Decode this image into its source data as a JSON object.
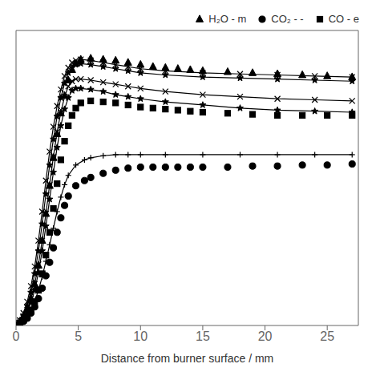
{
  "chart_data": {
    "type": "line",
    "xlabel": "Distance from burner surface / mm",
    "xlim": [
      0,
      27.5
    ],
    "xticks": [
      0,
      5,
      10,
      15,
      20,
      25
    ],
    "ylim": [
      0,
      0.285
    ],
    "yticks": [],
    "tick_labels": "x",
    "legend": "upper right",
    "grid": false,
    "series": [
      {
        "x": [
          0.0,
          0.3,
          0.6,
          0.9,
          1.2,
          1.5,
          1.8,
          2.1,
          2.4,
          2.7,
          3.0,
          3.3,
          3.6,
          3.9,
          4.2,
          4.5,
          4.8,
          5.2,
          6.0,
          7.0,
          8.0,
          9.0,
          10.0,
          12.0,
          15.0,
          18.0,
          21.0,
          24.0,
          27.0
        ],
        "values": [
          0.0,
          0.005,
          0.012,
          0.023,
          0.038,
          0.057,
          0.082,
          0.11,
          0.14,
          0.168,
          0.192,
          0.212,
          0.228,
          0.241,
          0.249,
          0.254,
          0.256,
          0.257,
          0.256,
          0.254,
          0.252,
          0.25,
          0.248,
          0.246,
          0.244,
          0.243,
          0.242,
          0.241,
          0.24
        ],
        "color": "#000000",
        "marker": "x",
        "line_style": "solid"
      },
      {
        "x": [
          0.0,
          0.3,
          0.6,
          0.9,
          1.2,
          1.5,
          1.8,
          2.1,
          2.4,
          2.7,
          3.0,
          3.3,
          3.6,
          3.9,
          4.2,
          4.5,
          4.8,
          5.2,
          6.0,
          7.0,
          8.0,
          9.0,
          10.0,
          12.0,
          15.0,
          18.0,
          21.0,
          24.0,
          27.0
        ],
        "values": [
          0.0,
          0.004,
          0.01,
          0.019,
          0.032,
          0.05,
          0.072,
          0.098,
          0.127,
          0.155,
          0.18,
          0.202,
          0.22,
          0.234,
          0.244,
          0.249,
          0.252,
          0.253,
          0.252,
          0.25,
          0.248,
          0.246,
          0.244,
          0.242,
          0.24,
          0.239,
          0.238,
          0.237,
          0.236
        ],
        "color": "#000000",
        "marker": "star",
        "line_style": "solid"
      },
      {
        "x": [
          0.0,
          0.3,
          0.6,
          0.9,
          1.2,
          1.5,
          1.8,
          2.1,
          2.4,
          2.7,
          3.0,
          3.3,
          3.6,
          3.9,
          4.2,
          4.5,
          4.8,
          5.2,
          6.0,
          7.0,
          8.0,
          9.0,
          10.0,
          12.0,
          15.0,
          18.0,
          21.0,
          24.0,
          27.0
        ],
        "values": [
          0.0,
          0.003,
          0.008,
          0.015,
          0.026,
          0.04,
          0.059,
          0.082,
          0.108,
          0.136,
          0.163,
          0.187,
          0.206,
          0.221,
          0.231,
          0.236,
          0.238,
          0.238,
          0.237,
          0.235,
          0.233,
          0.231,
          0.229,
          0.226,
          0.223,
          0.221,
          0.219,
          0.218,
          0.217
        ],
        "color": "#000000",
        "marker": "x",
        "line_style": "solid"
      },
      {
        "x": [
          0.0,
          0.3,
          0.6,
          0.9,
          1.2,
          1.5,
          1.8,
          2.1,
          2.4,
          2.7,
          3.0,
          3.3,
          3.6,
          3.9,
          4.2,
          4.5,
          4.8,
          5.2,
          6.0,
          7.0,
          8.0,
          9.0,
          10.0,
          12.0,
          15.0,
          18.0,
          21.0,
          24.0,
          27.0
        ],
        "values": [
          0.0,
          0.003,
          0.007,
          0.013,
          0.022,
          0.034,
          0.051,
          0.072,
          0.096,
          0.122,
          0.148,
          0.172,
          0.193,
          0.209,
          0.22,
          0.227,
          0.229,
          0.229,
          0.228,
          0.226,
          0.223,
          0.221,
          0.219,
          0.216,
          0.213,
          0.21,
          0.208,
          0.207,
          0.206
        ],
        "color": "#000000",
        "marker": "star",
        "line_style": "solid"
      },
      {
        "x": [
          0.0,
          0.3,
          0.6,
          0.9,
          1.2,
          1.5,
          1.8,
          2.1,
          2.4,
          2.7,
          3.0,
          3.3,
          3.6,
          3.9,
          4.2,
          4.8,
          5.5,
          6.0,
          7.0,
          8.0,
          9.0,
          10.0,
          12.0,
          15.0,
          18.0,
          21.0,
          24.0,
          27.0
        ],
        "values": [
          0.0,
          0.002,
          0.005,
          0.009,
          0.015,
          0.023,
          0.034,
          0.047,
          0.062,
          0.078,
          0.094,
          0.11,
          0.124,
          0.136,
          0.145,
          0.155,
          0.16,
          0.162,
          0.164,
          0.165,
          0.165,
          0.165,
          0.165,
          0.165,
          0.165,
          0.165,
          0.165,
          0.165
        ],
        "color": "#000000",
        "marker": "plus",
        "line_style": "solid"
      },
      {
        "name": "H₂O - m",
        "x": [
          0.3,
          0.6,
          0.9,
          1.2,
          1.5,
          1.8,
          2.1,
          2.4,
          2.7,
          3.0,
          3.3,
          3.6,
          3.9,
          4.2,
          4.5,
          4.8,
          5.2,
          6.0,
          7.0,
          8.0,
          9.0,
          10.0,
          11.0,
          12.0,
          13.0,
          14.0,
          15.0,
          17.0,
          19.0,
          21.0,
          23.0,
          25.0,
          27.0
        ],
        "values": [
          0.004,
          0.009,
          0.016,
          0.026,
          0.04,
          0.058,
          0.082,
          0.108,
          0.135,
          0.162,
          0.185,
          0.205,
          0.222,
          0.237,
          0.247,
          0.253,
          0.257,
          0.258,
          0.257,
          0.256,
          0.254,
          0.252,
          0.25,
          0.249,
          0.248,
          0.247,
          0.246,
          0.245,
          0.244,
          0.243,
          0.242,
          0.241,
          0.24
        ],
        "color": "#000000",
        "marker": "triangle",
        "line_style": "none"
      },
      {
        "name": "CO₂ - -",
        "x": [
          0.3,
          0.6,
          0.9,
          1.2,
          1.5,
          1.8,
          2.1,
          2.4,
          2.7,
          3.0,
          3.3,
          3.6,
          3.9,
          4.2,
          4.8,
          5.5,
          6.0,
          7.0,
          8.0,
          9.0,
          10.0,
          11.0,
          12.0,
          13.0,
          14.0,
          15.0,
          17.0,
          19.0,
          21.0,
          23.0,
          25.0,
          27.0
        ],
        "values": [
          0.002,
          0.004,
          0.007,
          0.012,
          0.018,
          0.026,
          0.036,
          0.048,
          0.061,
          0.075,
          0.09,
          0.104,
          0.116,
          0.125,
          0.135,
          0.14,
          0.143,
          0.147,
          0.15,
          0.152,
          0.153,
          0.153,
          0.153,
          0.153,
          0.153,
          0.153,
          0.153,
          0.154,
          0.154,
          0.155,
          0.155,
          0.156
        ],
        "color": "#000000",
        "marker": "circle",
        "line_style": "none"
      },
      {
        "name": "CO - e",
        "x": [
          0.3,
          0.6,
          0.9,
          1.2,
          1.5,
          1.8,
          2.1,
          2.4,
          2.7,
          3.0,
          3.3,
          3.6,
          3.9,
          4.2,
          4.5,
          4.8,
          5.2,
          6.0,
          7.0,
          8.0,
          9.0,
          10.0,
          11.0,
          12.0,
          13.0,
          14.0,
          15.0,
          17.0,
          19.0,
          21.0,
          23.0,
          25.0,
          27.0
        ],
        "values": [
          0.002,
          0.005,
          0.009,
          0.015,
          0.023,
          0.034,
          0.05,
          0.068,
          0.09,
          0.113,
          0.137,
          0.16,
          0.178,
          0.193,
          0.203,
          0.21,
          0.215,
          0.217,
          0.216,
          0.215,
          0.213,
          0.211,
          0.21,
          0.209,
          0.208,
          0.207,
          0.206,
          0.205,
          0.204,
          0.203,
          0.203,
          0.203,
          0.203
        ],
        "color": "#000000",
        "marker": "square",
        "line_style": "none"
      }
    ]
  }
}
